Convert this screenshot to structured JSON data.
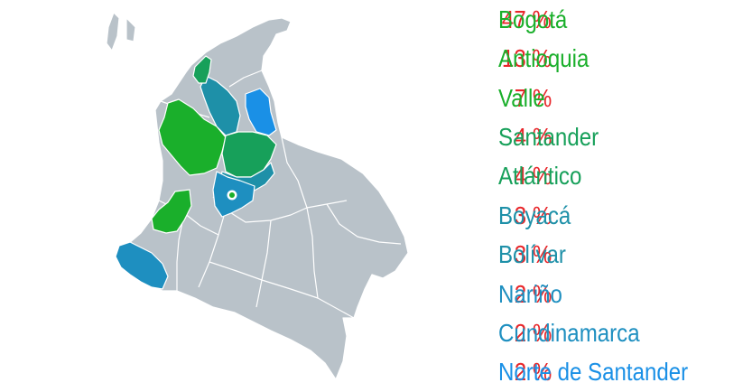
{
  "regions": [
    {
      "pct": "47 %",
      "name": "Bogotá",
      "color": "#1aaf2b",
      "id": "bogota"
    },
    {
      "pct": "13 %",
      "name": "Antioquia",
      "color": "#1aaf2b",
      "id": "antioquia"
    },
    {
      "pct": "7 %",
      "name": "Valle",
      "color": "#1aaf2b",
      "id": "valle"
    },
    {
      "pct": "4 %",
      "name": "Santander",
      "color": "#17a05a",
      "id": "santander"
    },
    {
      "pct": "4 %",
      "name": "Atlántico",
      "color": "#17a05a",
      "id": "atlantico"
    },
    {
      "pct": "3 %",
      "name": "Boyacá",
      "color": "#1e90a8",
      "id": "boyaca"
    },
    {
      "pct": "3 %",
      "name": "Bolívar",
      "color": "#1e90a8",
      "id": "bolivar"
    },
    {
      "pct": "2 %",
      "name": "Nariño",
      "color": "#1e8fc0",
      "id": "narino"
    },
    {
      "pct": "2 %",
      "name": "Cundinamarca",
      "color": "#1e8fc0",
      "id": "cundinamarca"
    },
    {
      "pct": "2 %",
      "name": "Norte de Santander",
      "color": "#1a90e6",
      "id": "norte-de-santander"
    }
  ],
  "colors": {
    "percent": "#e8262a",
    "map_base": "#b9c2c9",
    "capital_marker": "#1aaf2b"
  }
}
